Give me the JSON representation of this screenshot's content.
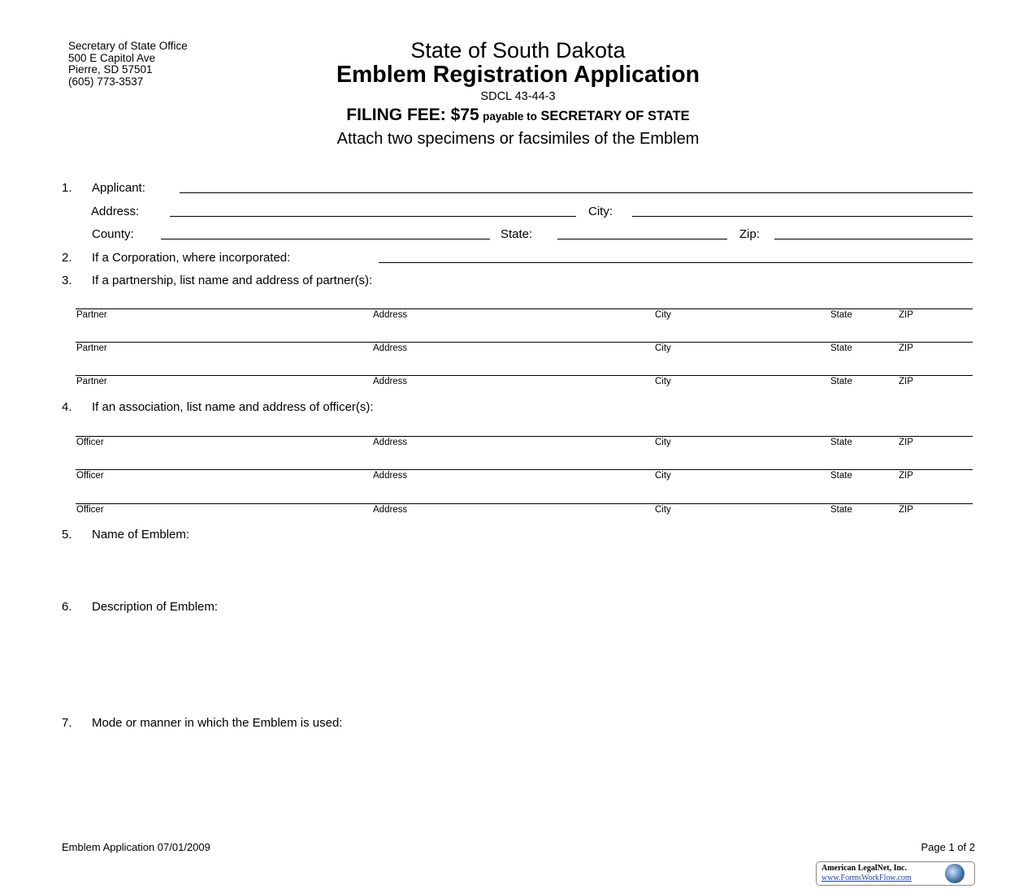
{
  "office": {
    "lines": [
      "Secretary of State Office",
      "500 E Capitol Ave",
      "Pierre, SD  57501",
      "(605) 773-3537"
    ]
  },
  "header": {
    "state": "State of South Dakota",
    "title": "Emblem Registration Application",
    "statute": "SDCL 43-44-3",
    "fee_label": "FILING FEE: $75",
    "fee_payable": "payable to",
    "fee_payee": "SECRETARY OF STATE",
    "instruction": "Attach two specimens or facsimiles of the Emblem"
  },
  "form": {
    "item1": {
      "num": "1.",
      "applicant": "Applicant:",
      "address": "Address:",
      "city": "City:",
      "county": "County:",
      "state": "State:",
      "zip": "Zip:"
    },
    "item2": {
      "num": "2.",
      "label": "If a Corporation, where incorporated:"
    },
    "item3": {
      "num": "3.",
      "label": "If a partnership, list name and address of partner(s):",
      "columns": [
        "Partner",
        "Address",
        "City",
        "State",
        "ZIP"
      ]
    },
    "item4": {
      "num": "4.",
      "label": "If an association, list name and address of officer(s):",
      "columns": [
        "Officer",
        "Address",
        "City",
        "State",
        "ZIP"
      ]
    },
    "item5": {
      "num": "5.",
      "label": "Name of Emblem:"
    },
    "item6": {
      "num": "6.",
      "label": "Description of Emblem:"
    },
    "item7": {
      "num": "7.",
      "label": "Mode or manner in which the Emblem is used:"
    }
  },
  "footer": {
    "form_id": "Emblem Application 07/01/2009",
    "page": "Page 1 of 2",
    "logo_name": "American LegalNet, Inc.",
    "logo_url": "www.FormsWorkFlow.com"
  }
}
